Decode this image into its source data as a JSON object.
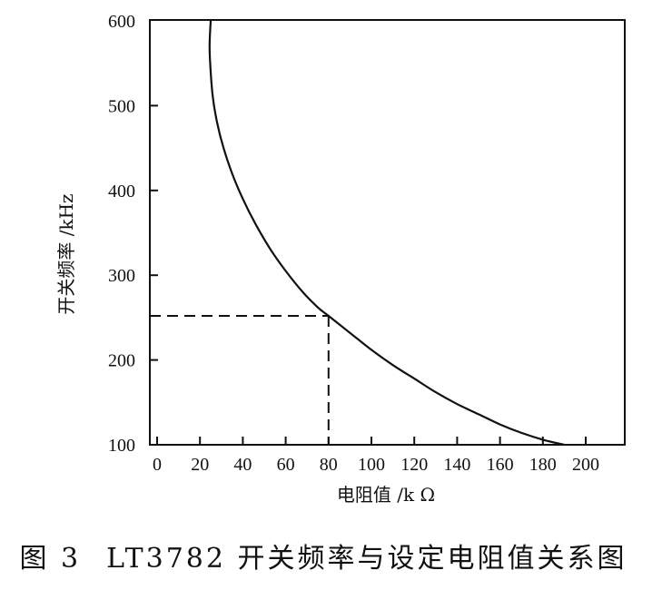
{
  "chart_data": {
    "type": "line",
    "title": "",
    "xlabel": "电阻值 /k Ω",
    "ylabel": "开关频率 /kHz",
    "xlim": [
      0,
      215
    ],
    "ylim": [
      100,
      600
    ],
    "xticks": [
      0,
      20,
      40,
      60,
      80,
      100,
      120,
      140,
      160,
      180,
      200
    ],
    "yticks": [
      100,
      200,
      300,
      400,
      500,
      600
    ],
    "series": [
      {
        "x": [
          25,
          24.5,
          25,
          26,
          28,
          31,
          35,
          40,
          46,
          53,
          60,
          68,
          75,
          80,
          90,
          100,
          110,
          120,
          130,
          140,
          150,
          160,
          170,
          180,
          190
        ],
        "y": [
          600,
          570,
          540,
          510,
          480,
          450,
          420,
          390,
          360,
          330,
          305,
          280,
          262,
          252,
          232,
          212,
          194,
          178,
          162,
          148,
          136,
          124,
          114,
          106,
          100
        ]
      }
    ],
    "reference": {
      "x": 80,
      "y": 252
    },
    "grid": false,
    "legend": "none"
  },
  "caption": {
    "figure_no": "图 3",
    "text": "LT3782 开关频率与设定电阻值关系图"
  },
  "colors": {
    "line": "#111111",
    "background": "#ffffff"
  }
}
